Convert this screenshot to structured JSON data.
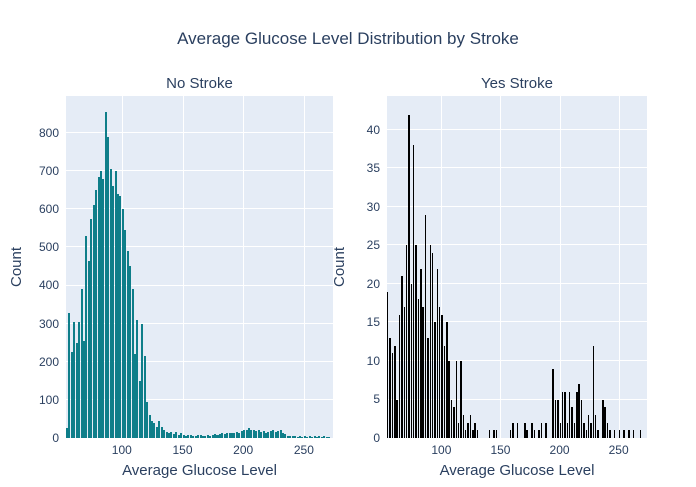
{
  "title": "Average Glucose Level Distribution by Stroke",
  "colors": {
    "text": "#2a3f5f",
    "plot_background": "#e5ecf6",
    "gridline": "#ffffff",
    "no_stroke_bars": "#0e7e89",
    "yes_stroke_bars": "#000000",
    "page_background": "#ffffff"
  },
  "chart_data": [
    {
      "type": "bar",
      "panel": "No Stroke",
      "xlabel": "Average Glucose Level",
      "ylabel": "Count",
      "color": "#0e7e89",
      "xlim": [
        54,
        274
      ],
      "ylim": [
        0,
        897
      ],
      "x_ticks": [
        100,
        150,
        200,
        250
      ],
      "y_ticks": [
        0,
        100,
        200,
        300,
        400,
        500,
        600,
        700,
        800
      ],
      "grid": true,
      "legend": "none",
      "bin_start": 54,
      "bin_width": 2,
      "counts": [
        26,
        328,
        225,
        305,
        250,
        305,
        390,
        255,
        530,
        465,
        575,
        610,
        650,
        685,
        700,
        680,
        855,
        790,
        705,
        660,
        700,
        640,
        635,
        600,
        545,
        490,
        450,
        390,
        220,
        310,
        150,
        300,
        215,
        95,
        60,
        45,
        40,
        30,
        45,
        28,
        20,
        16,
        13,
        16,
        11,
        15,
        9,
        12,
        7,
        5,
        9,
        7,
        5,
        4,
        9,
        7,
        5,
        6,
        8,
        6,
        8,
        10,
        8,
        10,
        12,
        10,
        12,
        14,
        12,
        14,
        16,
        14,
        18,
        20,
        22,
        25,
        22,
        20,
        18,
        20,
        16,
        18,
        14,
        16,
        18,
        20,
        16,
        18,
        22,
        14,
        10,
        6,
        4,
        5,
        4,
        3,
        4,
        3,
        4,
        3,
        4,
        3,
        4,
        3,
        4,
        3,
        4,
        2,
        3
      ]
    },
    {
      "type": "bar",
      "panel": "Yes Stroke",
      "xlabel": "Average Glucose Level",
      "ylabel": "Count",
      "color": "#000000",
      "xlim": [
        54,
        274
      ],
      "ylim": [
        0,
        44.4
      ],
      "x_ticks": [
        100,
        150,
        200,
        250
      ],
      "y_ticks": [
        0,
        5,
        10,
        15,
        20,
        25,
        30,
        35,
        40
      ],
      "grid": true,
      "legend": "none",
      "bin_start": 54,
      "bin_width": 2,
      "counts": [
        19,
        13,
        11,
        12,
        5,
        16,
        21,
        17,
        25,
        42,
        20,
        38,
        25,
        18,
        22,
        17,
        29,
        13,
        25,
        24,
        15,
        22,
        17,
        16,
        12,
        15,
        10,
        5,
        4,
        10,
        2,
        10,
        3,
        1,
        2,
        3,
        1,
        2,
        1,
        0,
        0,
        0,
        0,
        1,
        0,
        1,
        1,
        0,
        0,
        0,
        0,
        0,
        1,
        2,
        0,
        2,
        0,
        0,
        2,
        1,
        0,
        2,
        1,
        0,
        1,
        2,
        0,
        2,
        0,
        0,
        9,
        5,
        5,
        2,
        6,
        6,
        2,
        6,
        4,
        2,
        6,
        7,
        5,
        2,
        1,
        3,
        2,
        12,
        3,
        1,
        0,
        5,
        4,
        2,
        1,
        0,
        1,
        0,
        1,
        0,
        1,
        0,
        1,
        0,
        1,
        0,
        0,
        1,
        0
      ]
    }
  ]
}
